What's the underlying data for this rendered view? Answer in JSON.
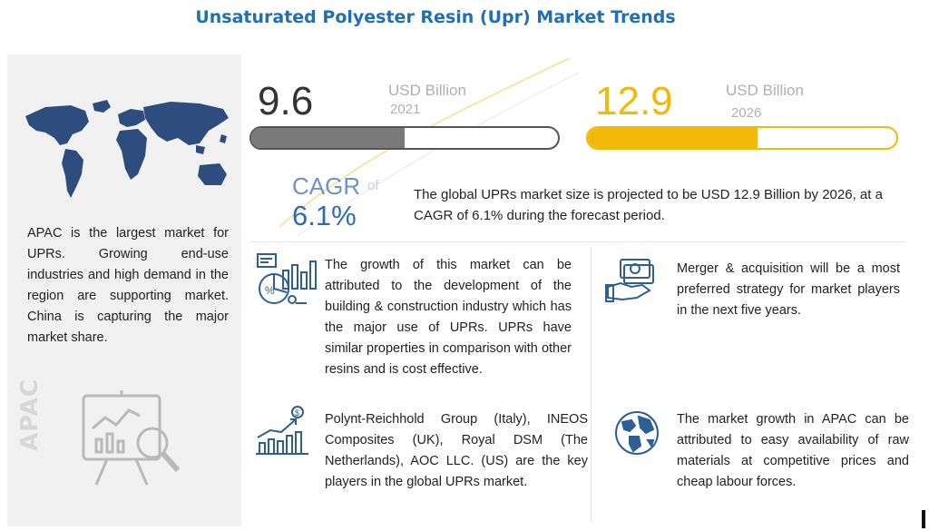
{
  "title": "Unsaturated Polyester Resin (Upr) Market Trends",
  "left": {
    "text": "APAC is the largest market for UPRs. Growing end-use industries and high demand in the region are supporting market. China is capturing the major market share.",
    "region_label": "APAC"
  },
  "market": {
    "current": {
      "value": "9.6",
      "unit": "USD Billion",
      "year": "2021",
      "progress_fraction": 0.5
    },
    "forecast": {
      "value": "12.9",
      "unit": "USD Billion",
      "year": "2026",
      "progress_fraction": 0.55
    }
  },
  "cagr": {
    "label": "CAGR",
    "of": "of",
    "value": "6.1%",
    "summary": "The global UPRs market size is projected to be USD 12.9 Billion by 2026, at a CAGR of 6.1% during the forecast period."
  },
  "highlights": [
    {
      "icon": "analytics-icon",
      "text": "The growth of this market can be attributed to the development of the building & construction industry which has the major use of UPRs. UPRs have similar properties in comparison with other resins and is cost effective."
    },
    {
      "icon": "money-handshake-icon",
      "text": "Merger & acquisition will be a most preferred strategy for market players in the next five years."
    },
    {
      "icon": "growth-chart-icon",
      "text": "Polynt-Reichhold Group (Italy), INEOS Composites (UK), Royal DSM (The Netherlands), AOC LLC. (US) are the key players in the global UPRs market."
    },
    {
      "icon": "globe-icon",
      "text": "The market growth in APAC can be attributed to easy availability of raw materials at competitive prices and cheap labour forces."
    }
  ],
  "colors": {
    "title": "#1e6fb5",
    "accent_yellow": "#f2b90b",
    "bar_grey": "#7a7a7a",
    "cagr_blue": "#2a6db2",
    "icon_blue": "#2d5f94"
  }
}
